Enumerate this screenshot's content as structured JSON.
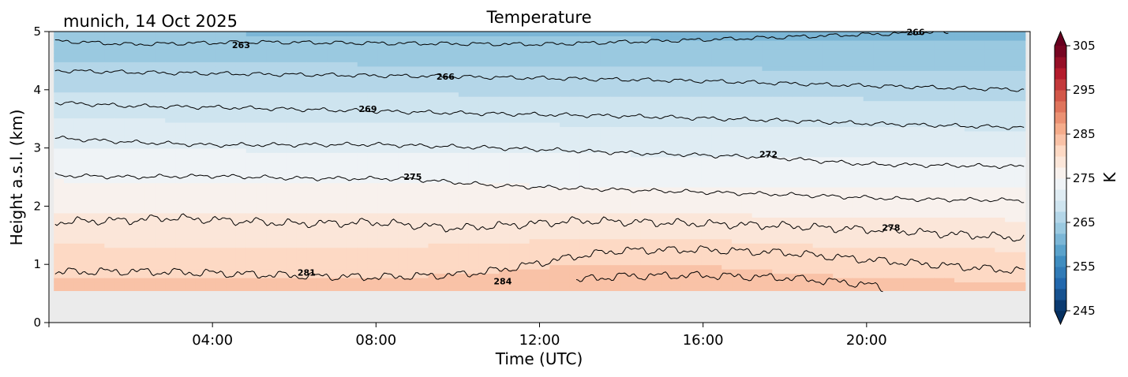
{
  "chart_data": {
    "type": "heatmap",
    "title": "Temperature",
    "station_label": "munich, 14 Oct 2025",
    "xlabel": "Time (UTC)",
    "ylabel": "Height a.s.l. (km)",
    "colorbar_label": "K",
    "xlim_hours": [
      0,
      24
    ],
    "ylim_km": [
      0,
      5
    ],
    "x_ticks": [
      {
        "hour": 4,
        "label": "04:00"
      },
      {
        "hour": 8,
        "label": "08:00"
      },
      {
        "hour": 12,
        "label": "12:00"
      },
      {
        "hour": 16,
        "label": "16:00"
      },
      {
        "hour": 20,
        "label": "20:00"
      }
    ],
    "y_ticks": [
      {
        "km": 0,
        "label": "0"
      },
      {
        "km": 1,
        "label": "1"
      },
      {
        "km": 2,
        "label": "2"
      },
      {
        "km": 3,
        "label": "3"
      },
      {
        "km": 4,
        "label": "4"
      },
      {
        "km": 5,
        "label": "5"
      }
    ],
    "data_extent": {
      "x_start_hour": 0.12,
      "x_end_hour": 23.88,
      "y_bottom_km": 0.55,
      "y_top_km": 5.0
    },
    "no_data_color": "#ebebeb",
    "colorbar": {
      "min": 245,
      "max": 305,
      "step": 2.5,
      "extend": "both",
      "colormap": "RdBu_r",
      "ticks": [
        {
          "value": 245,
          "label": "245"
        },
        {
          "value": 255,
          "label": "255"
        },
        {
          "value": 265,
          "label": "265"
        },
        {
          "value": 275,
          "label": "275"
        },
        {
          "value": 285,
          "label": "285"
        },
        {
          "value": 295,
          "label": "295"
        },
        {
          "value": 305,
          "label": "305"
        }
      ]
    },
    "temperature_profile": {
      "height_km": [
        0.55,
        1.0,
        2.0,
        3.0,
        4.0,
        5.0
      ],
      "temperature_K": [
        283.5,
        281.5,
        277.0,
        272.5,
        267.5,
        262.5
      ],
      "afternoon_warming_K": 1.8,
      "warming_peak_hour": 14.5
    },
    "contours": [
      {
        "level": 263,
        "label": "263",
        "points": [
          [
            0.15,
            4.84
          ],
          [
            2,
            4.78
          ],
          [
            5,
            4.82
          ],
          [
            8,
            4.8
          ],
          [
            12,
            4.78
          ],
          [
            16,
            4.86
          ],
          [
            20,
            4.95
          ],
          [
            22,
            4.99
          ]
        ]
      },
      {
        "level": 266,
        "label": "266",
        "points": [
          [
            0.15,
            4.33
          ],
          [
            2,
            4.3
          ],
          [
            5,
            4.27
          ],
          [
            9.5,
            4.23
          ],
          [
            12,
            4.2
          ],
          [
            16,
            4.15
          ],
          [
            20,
            4.07
          ],
          [
            23.85,
            4.0
          ]
        ]
      },
      {
        "level": 269,
        "label": "269",
        "points": [
          [
            0.15,
            3.78
          ],
          [
            2,
            3.72
          ],
          [
            4,
            3.7
          ],
          [
            7.5,
            3.64
          ],
          [
            10,
            3.6
          ],
          [
            14,
            3.55
          ],
          [
            18,
            3.47
          ],
          [
            20,
            3.42
          ],
          [
            23.85,
            3.35
          ]
        ]
      },
      {
        "level": 272,
        "label": "272",
        "points": [
          [
            0.15,
            3.17
          ],
          [
            2,
            3.1
          ],
          [
            4,
            3.05
          ],
          [
            8,
            3.06
          ],
          [
            11,
            3.0
          ],
          [
            14,
            2.92
          ],
          [
            17.6,
            2.84
          ],
          [
            20,
            2.72
          ],
          [
            23.85,
            2.68
          ]
        ]
      },
      {
        "level": 275,
        "label": "275",
        "points": [
          [
            0.15,
            2.53
          ],
          [
            2,
            2.5
          ],
          [
            4,
            2.52
          ],
          [
            6,
            2.48
          ],
          [
            8.8,
            2.47
          ],
          [
            11,
            2.35
          ],
          [
            14,
            2.28
          ],
          [
            18,
            2.2
          ],
          [
            21,
            2.12
          ],
          [
            23.85,
            2.1
          ]
        ]
      },
      {
        "level": 278,
        "label": "278",
        "points": [
          [
            0.15,
            1.73
          ],
          [
            2,
            1.76
          ],
          [
            3,
            1.8
          ],
          [
            6,
            1.7
          ],
          [
            8,
            1.72
          ],
          [
            10,
            1.62
          ],
          [
            13,
            1.75
          ],
          [
            16,
            1.7
          ],
          [
            18,
            1.66
          ],
          [
            20.6,
            1.58
          ],
          [
            23.85,
            1.45
          ]
        ]
      },
      {
        "level": 281,
        "label": "281",
        "points": [
          [
            0.15,
            0.87
          ],
          [
            2,
            0.88
          ],
          [
            4,
            0.85
          ],
          [
            6.3,
            0.8
          ],
          [
            8,
            0.78
          ],
          [
            10,
            0.82
          ],
          [
            11,
            0.9
          ],
          [
            13,
            1.15
          ],
          [
            14,
            1.24
          ],
          [
            16,
            1.25
          ],
          [
            18,
            1.2
          ],
          [
            20,
            1.08
          ],
          [
            23.85,
            0.88
          ]
        ]
      },
      {
        "level": 284,
        "label": "284",
        "points": [
          [
            12.9,
            0.73
          ],
          [
            14,
            0.8
          ],
          [
            16,
            0.81
          ],
          [
            18,
            0.77
          ],
          [
            20,
            0.66
          ],
          [
            20.4,
            0.58
          ]
        ]
      }
    ],
    "contour_labels": [
      {
        "text": "263",
        "hour": 4.7,
        "km": 4.77
      },
      {
        "text": "266",
        "hour": 9.7,
        "km": 4.23
      },
      {
        "text": "269",
        "hour": 7.8,
        "km": 3.67
      },
      {
        "text": "272",
        "hour": 17.6,
        "km": 2.89
      },
      {
        "text": "275",
        "hour": 8.9,
        "km": 2.51
      },
      {
        "text": "278",
        "hour": 20.6,
        "km": 1.63
      },
      {
        "text": "281",
        "hour": 6.3,
        "km": 0.86
      },
      {
        "text": "284",
        "hour": 11.1,
        "km": 0.71
      },
      {
        "text": "266",
        "hour": 21.2,
        "km": 4.99
      }
    ]
  }
}
